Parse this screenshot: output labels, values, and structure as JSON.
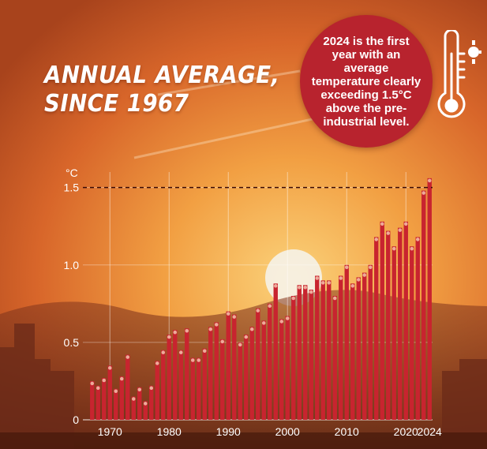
{
  "headline": {
    "line1": "ANNUAL AVERAGE,",
    "line2": "SINCE 1967"
  },
  "callout": {
    "text": "2024 is the first year with an average temperature clearly exceeding 1.5°C above the pre-industrial level."
  },
  "icons": {
    "thermometer": "thermometer-sun-icon"
  },
  "colors": {
    "bar": "#c8242f",
    "bar_top": "#f2b9a6",
    "axis_text": "#ffffff",
    "callout_bg": "#b8232e",
    "threshold_line": "#3a0a06"
  },
  "chart_data": {
    "type": "bar",
    "title": "",
    "xlabel": "",
    "ylabel": "°C",
    "x_tick_labels": [
      "1970",
      "1980",
      "1990",
      "2000",
      "2010",
      "2020",
      "2024"
    ],
    "y_tick_labels": [
      "0",
      "0.5",
      "1.0",
      "1.5"
    ],
    "ylim": [
      0,
      1.6
    ],
    "threshold": 1.5,
    "grid": true,
    "categories": [
      1967,
      1968,
      1969,
      1970,
      1971,
      1972,
      1973,
      1974,
      1975,
      1976,
      1977,
      1978,
      1979,
      1980,
      1981,
      1982,
      1983,
      1984,
      1985,
      1986,
      1987,
      1988,
      1989,
      1990,
      1991,
      1992,
      1993,
      1994,
      1995,
      1996,
      1997,
      1998,
      1999,
      2000,
      2001,
      2002,
      2003,
      2004,
      2005,
      2006,
      2007,
      2008,
      2009,
      2010,
      2011,
      2012,
      2013,
      2014,
      2015,
      2016,
      2017,
      2018,
      2019,
      2020,
      2021,
      2022,
      2023,
      2024
    ],
    "values": [
      0.25,
      0.22,
      0.27,
      0.35,
      0.2,
      0.28,
      0.42,
      0.15,
      0.21,
      0.12,
      0.22,
      0.38,
      0.45,
      0.55,
      0.58,
      0.45,
      0.59,
      0.4,
      0.4,
      0.46,
      0.6,
      0.63,
      0.52,
      0.7,
      0.68,
      0.5,
      0.55,
      0.6,
      0.72,
      0.64,
      0.75,
      0.88,
      0.65,
      0.67,
      0.8,
      0.87,
      0.87,
      0.84,
      0.93,
      0.9,
      0.9,
      0.8,
      0.93,
      1.0,
      0.88,
      0.92,
      0.95,
      1.0,
      1.18,
      1.28,
      1.22,
      1.12,
      1.24,
      1.28,
      1.12,
      1.18,
      1.48,
      1.56
    ]
  }
}
